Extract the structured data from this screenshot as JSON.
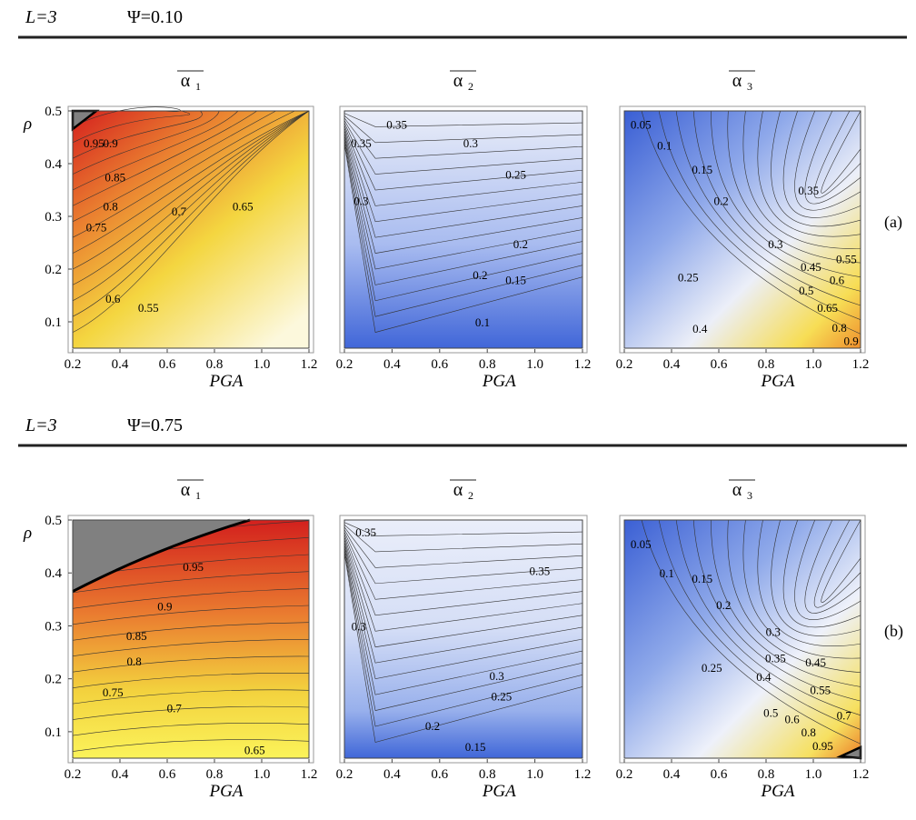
{
  "colors": {
    "red": "#d93026",
    "orange": "#ec8a2e",
    "yellow": "#f4dd3e",
    "cream": "#fbf7dd",
    "blue_dark": "#3b62d6",
    "blue_mid": "#8aa4e8",
    "blue_light": "#e8ecf8",
    "gray": "#808080"
  },
  "sections": [
    {
      "row_label": "(a)",
      "L_text": "L=3",
      "psi_text": "Ψ=0.10"
    },
    {
      "row_label": "(b)",
      "L_text": "L=3",
      "psi_text": "Ψ=0.75"
    }
  ],
  "chart_data": [
    {
      "type": "contour",
      "row": "a",
      "title": "α1",
      "xlabel": "PGA",
      "ylabel": "ρ",
      "xlim": [
        0.2,
        1.2
      ],
      "ylim": [
        0.05,
        0.5
      ],
      "xticks": [
        "0.2",
        "0.4",
        "0.6",
        "0.8",
        "1.0",
        "1.2"
      ],
      "yticks": [
        "0.1",
        "0.2",
        "0.3",
        "0.4",
        "0.5"
      ],
      "contour_labels": [
        {
          "text": "0.95",
          "x": 0.29,
          "y": 0.44
        },
        {
          "text": "0.9",
          "x": 0.36,
          "y": 0.44
        },
        {
          "text": "0.85",
          "x": 0.38,
          "y": 0.375
        },
        {
          "text": "0.8",
          "x": 0.36,
          "y": 0.32
        },
        {
          "text": "0.75",
          "x": 0.3,
          "y": 0.28
        },
        {
          "text": "0.7",
          "x": 0.65,
          "y": 0.31
        },
        {
          "text": "0.65",
          "x": 0.92,
          "y": 0.32
        },
        {
          "text": "0.6",
          "x": 0.37,
          "y": 0.145
        },
        {
          "text": "0.55",
          "x": 0.52,
          "y": 0.128
        }
      ]
    },
    {
      "type": "contour",
      "row": "a",
      "title": "α2",
      "xlabel": "PGA",
      "ylabel": "",
      "xlim": [
        0.2,
        1.2
      ],
      "ylim": [
        0.05,
        0.5
      ],
      "xticks": [
        "0.2",
        "0.4",
        "0.6",
        "0.8",
        "1.0",
        "1.2"
      ],
      "yticks": [],
      "contour_labels": [
        {
          "text": "0.35",
          "x": 0.42,
          "y": 0.475
        },
        {
          "text": "0.35",
          "x": 0.27,
          "y": 0.44
        },
        {
          "text": "0.3",
          "x": 0.73,
          "y": 0.44
        },
        {
          "text": "0.25",
          "x": 0.92,
          "y": 0.38
        },
        {
          "text": "0.3",
          "x": 0.27,
          "y": 0.33
        },
        {
          "text": "0.2",
          "x": 0.94,
          "y": 0.248
        },
        {
          "text": "0.2",
          "x": 0.77,
          "y": 0.19
        },
        {
          "text": "0.15",
          "x": 0.92,
          "y": 0.18
        },
        {
          "text": "0.1",
          "x": 0.78,
          "y": 0.1
        }
      ]
    },
    {
      "type": "contour",
      "row": "a",
      "title": "α3",
      "xlabel": "PGA",
      "ylabel": "",
      "xlim": [
        0.2,
        1.2
      ],
      "ylim": [
        0.05,
        0.5
      ],
      "xticks": [
        "0.2",
        "0.4",
        "0.6",
        "0.8",
        "1.0",
        "1.2"
      ],
      "yticks": [],
      "contour_labels": [
        {
          "text": "0.05",
          "x": 0.27,
          "y": 0.475
        },
        {
          "text": "0.1",
          "x": 0.37,
          "y": 0.435
        },
        {
          "text": "0.15",
          "x": 0.53,
          "y": 0.39
        },
        {
          "text": "0.2",
          "x": 0.61,
          "y": 0.33
        },
        {
          "text": "0.35",
          "x": 0.98,
          "y": 0.35
        },
        {
          "text": "0.3",
          "x": 0.84,
          "y": 0.248
        },
        {
          "text": "0.25",
          "x": 0.47,
          "y": 0.185
        },
        {
          "text": "0.45",
          "x": 0.99,
          "y": 0.205
        },
        {
          "text": "0.55",
          "x": 1.14,
          "y": 0.22
        },
        {
          "text": "0.5",
          "x": 0.97,
          "y": 0.16
        },
        {
          "text": "0.6",
          "x": 1.1,
          "y": 0.18
        },
        {
          "text": "0.65",
          "x": 1.06,
          "y": 0.128
        },
        {
          "text": "0.4",
          "x": 0.52,
          "y": 0.088
        },
        {
          "text": "0.8",
          "x": 1.11,
          "y": 0.09
        },
        {
          "text": "0.9",
          "x": 1.16,
          "y": 0.065
        }
      ]
    },
    {
      "type": "contour",
      "row": "b",
      "title": "α1",
      "xlabel": "PGA",
      "ylabel": "ρ",
      "xlim": [
        0.2,
        1.2
      ],
      "ylim": [
        0.05,
        0.5
      ],
      "xticks": [
        "0.2",
        "0.4",
        "0.6",
        "0.8",
        "1.0",
        "1.2"
      ],
      "yticks": [
        "0.1",
        "0.2",
        "0.3",
        "0.4",
        "0.5"
      ],
      "contour_labels": [
        {
          "text": "0.95",
          "x": 0.71,
          "y": 0.412
        },
        {
          "text": "0.9",
          "x": 0.59,
          "y": 0.338
        },
        {
          "text": "0.85",
          "x": 0.47,
          "y": 0.282
        },
        {
          "text": "0.8",
          "x": 0.46,
          "y": 0.234
        },
        {
          "text": "0.75",
          "x": 0.37,
          "y": 0.175
        },
        {
          "text": "0.7",
          "x": 0.63,
          "y": 0.145
        },
        {
          "text": "0.65",
          "x": 0.97,
          "y": 0.066
        }
      ]
    },
    {
      "type": "contour",
      "row": "b",
      "title": "α2",
      "xlabel": "PGA",
      "ylabel": "",
      "xlim": [
        0.2,
        1.2
      ],
      "ylim": [
        0.05,
        0.5
      ],
      "xticks": [
        "0.2",
        "0.4",
        "0.6",
        "0.8",
        "1.0",
        "1.2"
      ],
      "yticks": [],
      "contour_labels": [
        {
          "text": "0.35",
          "x": 0.29,
          "y": 0.478
        },
        {
          "text": "0.35",
          "x": 1.02,
          "y": 0.405
        },
        {
          "text": "0.3",
          "x": 0.26,
          "y": 0.3
        },
        {
          "text": "0.3",
          "x": 0.84,
          "y": 0.206
        },
        {
          "text": "0.25",
          "x": 0.86,
          "y": 0.168
        },
        {
          "text": "0.2",
          "x": 0.57,
          "y": 0.112
        },
        {
          "text": "0.15",
          "x": 0.75,
          "y": 0.072
        }
      ]
    },
    {
      "type": "contour",
      "row": "b",
      "title": "α3",
      "xlabel": "PGA",
      "ylabel": "",
      "xlim": [
        0.2,
        1.2
      ],
      "ylim": [
        0.05,
        0.5
      ],
      "xticks": [
        "0.2",
        "0.4",
        "0.6",
        "0.8",
        "1.0",
        "1.2"
      ],
      "yticks": [],
      "contour_labels": [
        {
          "text": "0.05",
          "x": 0.27,
          "y": 0.455
        },
        {
          "text": "0.1",
          "x": 0.38,
          "y": 0.4
        },
        {
          "text": "0.15",
          "x": 0.53,
          "y": 0.39
        },
        {
          "text": "0.2",
          "x": 0.62,
          "y": 0.34
        },
        {
          "text": "0.3",
          "x": 0.83,
          "y": 0.29
        },
        {
          "text": "0.35",
          "x": 0.84,
          "y": 0.24
        },
        {
          "text": "0.25",
          "x": 0.57,
          "y": 0.222
        },
        {
          "text": "0.45",
          "x": 1.01,
          "y": 0.232
        },
        {
          "text": "0.4",
          "x": 0.79,
          "y": 0.205
        },
        {
          "text": "0.55",
          "x": 1.03,
          "y": 0.18
        },
        {
          "text": "0.5",
          "x": 0.82,
          "y": 0.137
        },
        {
          "text": "0.6",
          "x": 0.91,
          "y": 0.125
        },
        {
          "text": "0.7",
          "x": 1.13,
          "y": 0.132
        },
        {
          "text": "0.8",
          "x": 0.98,
          "y": 0.1
        },
        {
          "text": "0.95",
          "x": 1.04,
          "y": 0.074
        }
      ]
    }
  ]
}
